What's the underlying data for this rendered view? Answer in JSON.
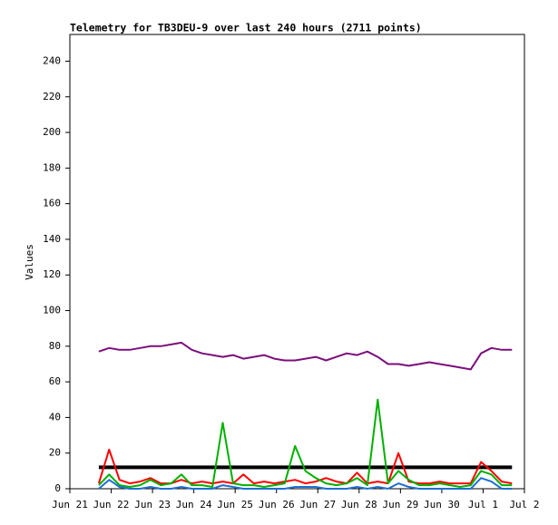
{
  "chart_data": {
    "type": "line",
    "title": "Telemetry for TB3DEU-9 over last 240 hours (2711 points)",
    "y_label": "Values",
    "x": [
      0.7,
      0.95,
      1.2,
      1.45,
      1.7,
      1.95,
      2.2,
      2.45,
      2.7,
      2.95,
      3.2,
      3.45,
      3.7,
      3.95,
      4.2,
      4.45,
      4.7,
      4.95,
      5.2,
      5.45,
      5.7,
      5.95,
      6.2,
      6.45,
      6.7,
      6.95,
      7.2,
      7.45,
      7.7,
      7.95,
      8.2,
      8.45,
      8.7,
      8.95,
      9.2,
      9.45,
      9.7,
      9.95,
      10.2,
      10.45,
      10.7
    ],
    "series": [
      {
        "color": "#7b0f7b",
        "values": [
          77,
          79,
          78,
          78,
          79,
          80,
          80,
          81,
          82,
          78,
          76,
          75,
          74,
          75,
          73,
          74,
          75,
          73,
          72,
          72,
          73,
          74,
          72,
          74,
          76,
          75,
          77,
          74,
          70,
          70,
          69,
          70,
          71,
          70,
          69,
          68,
          67,
          76,
          79,
          78,
          78
        ]
      },
      {
        "color": "#000000",
        "values": [
          12,
          12,
          12,
          12,
          12,
          12,
          12,
          12,
          12,
          12,
          12,
          12,
          12,
          12,
          12,
          12,
          12,
          12,
          12,
          12,
          12,
          12,
          12,
          12,
          12,
          12,
          12,
          12,
          12,
          12,
          12,
          12,
          12,
          12,
          12,
          12,
          12,
          12,
          12,
          12,
          12
        ]
      },
      {
        "color": "#ff0000",
        "values": [
          3,
          22,
          5,
          3,
          4,
          6,
          3,
          3,
          5,
          3,
          4,
          3,
          4,
          3,
          8,
          3,
          4,
          3,
          4,
          5,
          3,
          4,
          6,
          4,
          3,
          9,
          3,
          4,
          3,
          20,
          4,
          3,
          3,
          4,
          3,
          3,
          3,
          15,
          10,
          4,
          3
        ]
      },
      {
        "color": "#00b000",
        "values": [
          2,
          8,
          2,
          1,
          2,
          5,
          2,
          3,
          8,
          2,
          2,
          1,
          37,
          3,
          2,
          2,
          1,
          2,
          3,
          24,
          10,
          6,
          3,
          2,
          3,
          6,
          2,
          50,
          3,
          10,
          5,
          2,
          2,
          3,
          2,
          1,
          2,
          10,
          8,
          2,
          2
        ]
      },
      {
        "color": "#1f6fd0",
        "values": [
          0,
          5,
          1,
          0,
          0,
          1,
          0,
          0,
          1,
          0,
          0,
          0,
          2,
          1,
          0,
          0,
          0,
          0,
          0,
          1,
          1,
          1,
          0,
          0,
          0,
          1,
          0,
          1,
          0,
          3,
          1,
          0,
          0,
          0,
          0,
          0,
          0,
          6,
          4,
          0,
          0
        ]
      }
    ],
    "xlim": [
      0,
      11
    ],
    "xticks": [
      {
        "value": 0,
        "label": "Jun 21"
      },
      {
        "value": 1,
        "label": "Jun 22"
      },
      {
        "value": 2,
        "label": "Jun 23"
      },
      {
        "value": 3,
        "label": "Jun 24"
      },
      {
        "value": 4,
        "label": "Jun 25"
      },
      {
        "value": 5,
        "label": "Jun 26"
      },
      {
        "value": 6,
        "label": "Jun 27"
      },
      {
        "value": 7,
        "label": "Jun 28"
      },
      {
        "value": 8,
        "label": "Jun 29"
      },
      {
        "value": 9,
        "label": "Jun 30"
      },
      {
        "value": 10,
        "label": "Jul 1"
      },
      {
        "value": 11,
        "label": "Jul 2"
      }
    ],
    "ylim": [
      0,
      255
    ],
    "yticks": [
      0,
      20,
      40,
      60,
      80,
      100,
      120,
      140,
      160,
      180,
      200,
      220,
      240
    ],
    "grid": false
  }
}
